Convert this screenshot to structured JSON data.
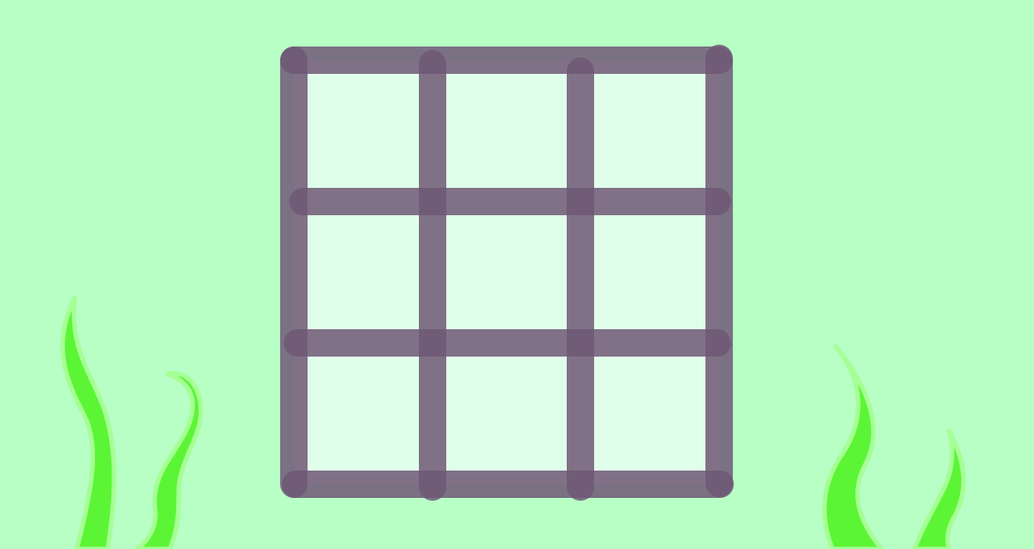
{
  "game": {
    "board": {
      "rows": 3,
      "cols": 3,
      "cells": [
        "",
        "",
        "",
        "",
        "",
        "",
        "",
        "",
        ""
      ]
    },
    "colors": {
      "background": "#b8ffc6",
      "cell_fill": "#e0ffea",
      "grid_line": "#6f5876",
      "seaweed": "#5cf535",
      "seaweed_edge": "#a6ff96"
    },
    "decorations": [
      "seaweed",
      "seaweed",
      "seaweed",
      "seaweed"
    ]
  }
}
